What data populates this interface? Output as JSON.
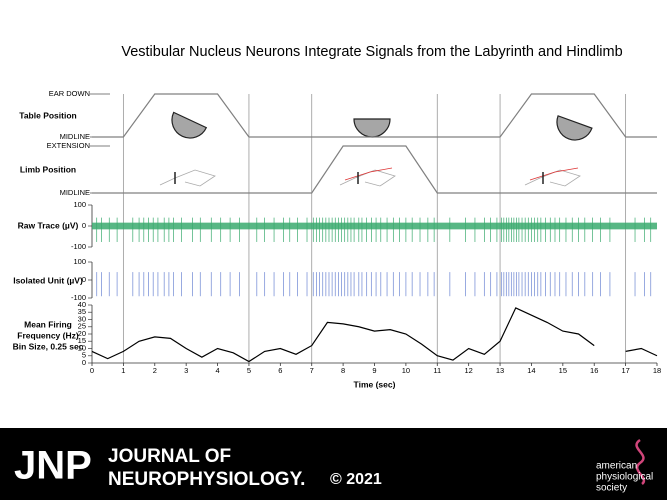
{
  "title": "Vestibular Nucleus Neurons Integrate Signals from the Labyrinth and Hindlimb",
  "chart_data": [
    {
      "type": "line",
      "label": "Table Position",
      "x": [
        0,
        1,
        2,
        4,
        5,
        13,
        14,
        16,
        17,
        18
      ],
      "values": [
        0,
        0,
        1,
        1,
        0,
        0,
        1,
        1,
        0,
        0
      ],
      "xlim": [
        0,
        18
      ],
      "ylim": [
        0,
        1
      ],
      "yticks": [
        {
          "value": 0,
          "label": "MIDLINE"
        },
        {
          "value": 1,
          "label": "EAR DOWN"
        }
      ],
      "color": "#808080"
    },
    {
      "type": "line",
      "label": "Limb Position",
      "x": [
        0,
        7,
        8,
        10,
        11,
        18
      ],
      "values": [
        0,
        0,
        1,
        1,
        0,
        0
      ],
      "xlim": [
        0,
        18
      ],
      "ylim": [
        0,
        1
      ],
      "yticks": [
        {
          "value": 0,
          "label": "MIDLINE"
        },
        {
          "value": 1,
          "label": "EXTENSION"
        }
      ],
      "color": "#808080"
    },
    {
      "type": "raw",
      "label": "Raw Trace (µV)",
      "xlim": [
        0,
        18
      ],
      "ylim": [
        -100,
        100
      ],
      "yticks": [
        -100,
        0,
        100
      ],
      "color": "#3aaa6e"
    },
    {
      "type": "spikes",
      "label": "Isolated Unit (µV)",
      "xlim": [
        0,
        18
      ],
      "ylim": [
        -100,
        100
      ],
      "yticks": [
        -100,
        0,
        100
      ],
      "color": "#7f95d8",
      "spike_times": [
        0.15,
        0.3,
        0.55,
        0.8,
        1.3,
        1.5,
        1.65,
        1.8,
        1.95,
        2.1,
        2.3,
        2.45,
        2.6,
        2.85,
        3.2,
        3.45,
        3.8,
        4.1,
        4.4,
        4.7,
        5.25,
        5.5,
        5.8,
        6.1,
        6.3,
        6.55,
        6.85,
        7.05,
        7.15,
        7.25,
        7.35,
        7.45,
        7.55,
        7.65,
        7.75,
        7.85,
        7.95,
        8.05,
        8.15,
        8.25,
        8.35,
        8.5,
        8.6,
        8.75,
        8.9,
        9.05,
        9.2,
        9.4,
        9.6,
        9.8,
        10.0,
        10.2,
        10.45,
        10.7,
        10.9,
        11.4,
        11.9,
        12.2,
        12.5,
        12.7,
        12.9,
        13.05,
        13.12,
        13.2,
        13.28,
        13.36,
        13.44,
        13.52,
        13.6,
        13.7,
        13.8,
        13.9,
        14.0,
        14.1,
        14.2,
        14.3,
        14.45,
        14.6,
        14.75,
        14.9,
        15.1,
        15.3,
        15.5,
        15.7,
        15.95,
        16.2,
        16.5,
        17.3,
        17.6,
        17.8
      ]
    },
    {
      "type": "line",
      "label": [
        "Mean Firing",
        "Frequency (Hz)",
        "Bin Size, 0.25 sec"
      ],
      "xlabel": "Time (sec)",
      "x": [
        0,
        0.5,
        1,
        1.5,
        2,
        2.5,
        3,
        3.5,
        4,
        4.5,
        5,
        5.5,
        6,
        6.5,
        7,
        7.5,
        8,
        8.5,
        9,
        9.5,
        10,
        10.5,
        11,
        11.5,
        12,
        12.5,
        13,
        13.5,
        14,
        14.5,
        15,
        15.5,
        16,
        16.5,
        17,
        17.5,
        18
      ],
      "values": [
        8,
        3,
        8,
        15,
        18,
        17,
        10,
        4,
        10,
        7,
        1,
        8,
        10,
        6,
        12,
        28,
        27,
        25,
        22,
        23,
        20,
        13,
        5,
        2,
        10,
        6,
        15,
        38,
        33,
        28,
        22,
        20,
        12,
        null,
        8,
        10,
        5
      ],
      "xlim": [
        0,
        18
      ],
      "xticks": [
        0,
        1,
        2,
        3,
        4,
        5,
        6,
        7,
        8,
        9,
        10,
        11,
        12,
        13,
        14,
        15,
        16,
        17,
        18
      ],
      "ylim": [
        0,
        40
      ],
      "yticks": [
        0,
        5,
        10,
        15,
        20,
        25,
        30,
        35,
        40
      ],
      "color": "#000000"
    }
  ],
  "footer": {
    "abbr": "JNP",
    "journal": [
      "JOURNAL OF",
      "NEUROPHYSIOLOGY."
    ],
    "copyright": "© 2021",
    "society": [
      "american",
      "physiological",
      "society"
    ]
  }
}
